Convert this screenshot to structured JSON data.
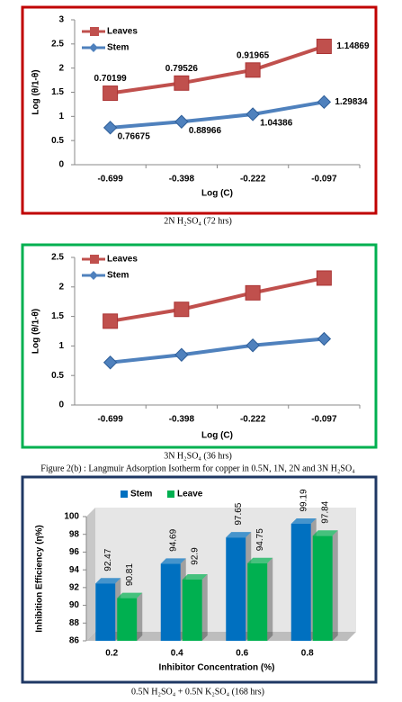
{
  "chart_data": [
    {
      "type": "line",
      "y_label": "Log (θ/1-θ)",
      "x_label": "Log (C)",
      "caption": "2N H₂SO₄ (72 hrs)",
      "categories": [
        "-0.699",
        "-0.398",
        "-0.222",
        "-0.097"
      ],
      "series": [
        {
          "name": "Leaves",
          "color": "#c0504d",
          "values": [
            1.48,
            1.69,
            1.96,
            2.45
          ]
        },
        {
          "name": "Stem",
          "color": "#4f81bd",
          "values": [
            0.76675,
            0.88966,
            1.04386,
            1.29834
          ]
        }
      ],
      "annotations": [
        "0.70199",
        "0.79526",
        "0.91965",
        "1.14869"
      ],
      "ylim": [
        0,
        3
      ],
      "yticks": [
        0,
        0.5,
        1,
        1.5,
        2,
        2.5,
        3
      ],
      "border": "#c00000"
    },
    {
      "type": "line",
      "y_label": "Log (θ/1-θ)",
      "x_label": "Log (C)",
      "caption": "3N H₂SO₄ (36 hrs)",
      "categories": [
        "-0.699",
        "-0.398",
        "-0.222",
        "-0.097"
      ],
      "series": [
        {
          "name": "Leaves",
          "color": "#c0504d",
          "values": [
            1.42,
            1.62,
            1.9,
            2.15
          ]
        },
        {
          "name": "Stem",
          "color": "#4f81bd",
          "values": [
            0.72,
            0.85,
            1.01,
            1.12
          ]
        }
      ],
      "ylim": [
        0,
        2.5
      ],
      "yticks": [
        0,
        0.5,
        1,
        1.5,
        2,
        2.5
      ],
      "border": "#00b050"
    },
    {
      "type": "bar3d",
      "y_label": "Inhibition Efficiency (η%)",
      "x_label": "Inhibitor Concentration (%)",
      "caption": "0.5N H₂SO₄ + 0.5N K₂SO₄ (168 hrs)",
      "categories": [
        "0.2",
        "0.4",
        "0.6",
        "0.8"
      ],
      "series": [
        {
          "name": "Stem",
          "color": "#0070c0",
          "values": [
            92.47,
            94.69,
            97.65,
            99.19
          ]
        },
        {
          "name": "Leave",
          "color": "#00b050",
          "values": [
            90.81,
            92.9,
            94.75,
            97.84
          ]
        }
      ],
      "ylim": [
        86,
        100
      ],
      "yticks": [
        86,
        88,
        90,
        92,
        94,
        96,
        98,
        100
      ],
      "border": "#1f3864"
    }
  ],
  "figure_caption": "Figure 2(b) : Langmuir Adsorption Isotherm for copper in 0.5N, 1N, 2N and 3N H₂SO₄"
}
